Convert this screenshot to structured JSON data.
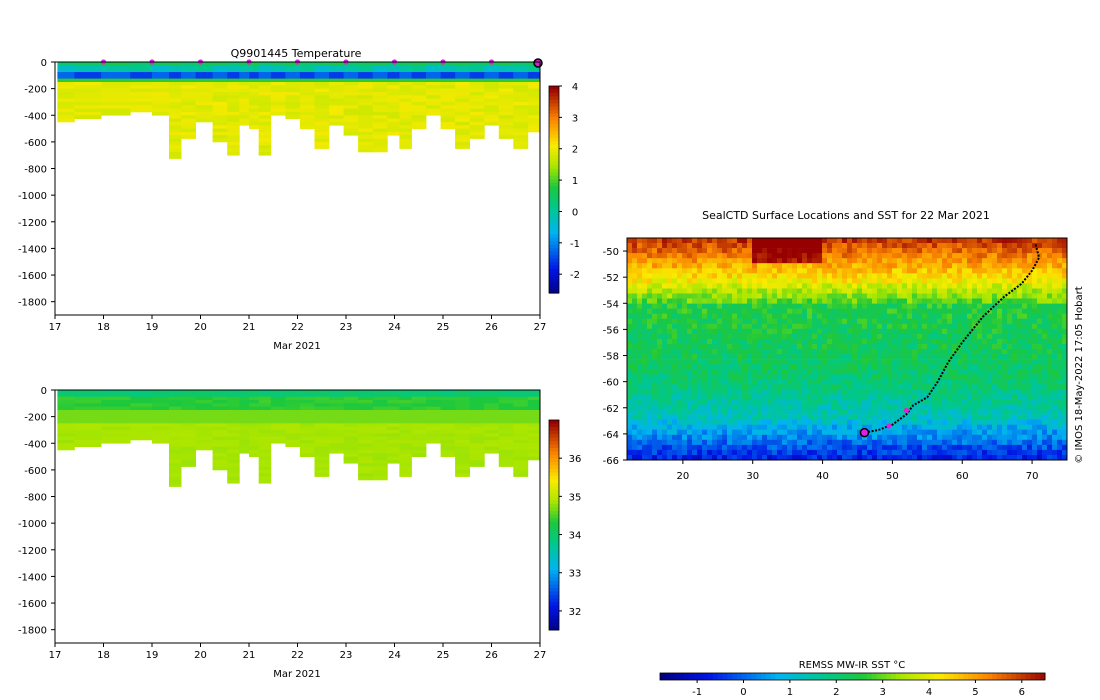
{
  "top_plot": {
    "title": "Q9901445  Temperature",
    "xlabel": "Mar 2021",
    "colorbar_ticks": [
      "4",
      "3",
      "2",
      "1",
      "0",
      "-1",
      "-2"
    ]
  },
  "bottom_plot": {
    "title": "",
    "xlabel": "Mar 2021",
    "colorbar_ticks": [
      "36",
      "35",
      "34",
      "33",
      "32"
    ]
  },
  "map": {
    "title": "SealCTD Surface Locations and SST for 22 Mar 2021",
    "credit": "© IMOS 18-May-2022 17:05 Hobart",
    "colorbar_label": "REMSS MW-IR SST °C",
    "colorbar_ticks": [
      "-1",
      "0",
      "1",
      "2",
      "3",
      "4",
      "5",
      "6"
    ]
  },
  "chart_data": [
    {
      "type": "heatmap",
      "title": "Q9901445  Temperature",
      "xlabel": "Mar 2021",
      "ylabel": "",
      "x_ticks": [
        17,
        18,
        19,
        20,
        21,
        22,
        23,
        24,
        25,
        26,
        27
      ],
      "y_ticks": [
        0,
        -200,
        -400,
        -600,
        -800,
        -1000,
        -1200,
        -1400,
        -1600,
        -1800
      ],
      "xlim": [
        17,
        27
      ],
      "ylim": [
        -1900,
        0
      ],
      "color_range": [
        -2.6,
        4
      ],
      "colorbar_ticks": [
        4,
        3,
        2,
        1,
        0,
        -1,
        -2
      ],
      "profile_times": [
        17.2,
        17.6,
        18.3,
        18.8,
        19.2,
        19.5,
        19.7,
        20.1,
        20.4,
        20.7,
        20.9,
        21.1,
        21.3,
        21.6,
        21.9,
        22.2,
        22.5,
        22.8,
        23.1,
        23.4,
        23.7,
        24.0,
        24.2,
        24.5,
        24.8,
        25.1,
        25.4,
        25.7,
        26.0,
        26.3,
        26.6,
        26.9
      ],
      "profile_max_depth": [
        430,
        410,
        400,
        370,
        400,
        720,
        560,
        450,
        590,
        700,
        460,
        500,
        690,
        390,
        420,
        500,
        640,
        470,
        540,
        660,
        670,
        540,
        640,
        500,
        390,
        480,
        630,
        560,
        460,
        570,
        630,
        510
      ],
      "surface_markers": [
        18,
        19,
        20,
        21,
        22,
        23,
        24,
        25,
        26
      ],
      "last_marker": 27
    },
    {
      "type": "heatmap",
      "title": "",
      "xlabel": "Mar 2021",
      "ylabel": "",
      "x_ticks": [
        17,
        18,
        19,
        20,
        21,
        22,
        23,
        24,
        25,
        26,
        27
      ],
      "y_ticks": [
        0,
        -200,
        -400,
        -600,
        -800,
        -1000,
        -1200,
        -1400,
        -1600,
        -1800
      ],
      "xlim": [
        17,
        27
      ],
      "ylim": [
        -1900,
        0
      ],
      "color_range": [
        31.5,
        37
      ],
      "colorbar_ticks": [
        36,
        35,
        34,
        33,
        32
      ]
    },
    {
      "type": "heatmap",
      "title": "SealCTD Surface Locations and SST for 22 Mar 2021",
      "x_ticks": [
        20,
        30,
        40,
        50,
        60,
        70
      ],
      "y_ticks": [
        -50,
        -52,
        -54,
        -56,
        -58,
        -60,
        -62,
        -64,
        -66
      ],
      "xlim": [
        12,
        75
      ],
      "ylim": [
        -66,
        -49
      ],
      "colorbar_label": "REMSS MW-IR SST °C",
      "color_range": [
        -1.8,
        6.5
      ],
      "colorbar_ticks": [
        -1,
        0,
        1,
        2,
        3,
        4,
        5,
        6
      ],
      "track": [
        [
          70.5,
          -49.5
        ],
        [
          71.0,
          -50.5
        ],
        [
          70.0,
          -51.5
        ],
        [
          68.5,
          -52.5
        ],
        [
          66.0,
          -53.5
        ],
        [
          63.0,
          -55.0
        ],
        [
          60.0,
          -57.0
        ],
        [
          58.0,
          -58.5
        ],
        [
          56.5,
          -60.0
        ],
        [
          55.0,
          -61.2
        ],
        [
          53.0,
          -61.8
        ],
        [
          52.0,
          -62.5
        ],
        [
          50.0,
          -63.3
        ],
        [
          48.0,
          -63.7
        ],
        [
          46.0,
          -63.9
        ]
      ],
      "track_markers": [
        [
          52.0,
          -62.2
        ],
        [
          49.5,
          -63.4
        ],
        [
          46.0,
          -63.9
        ]
      ]
    }
  ]
}
